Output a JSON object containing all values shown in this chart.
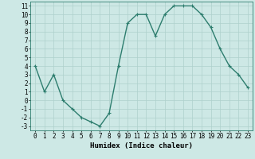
{
  "x": [
    0,
    1,
    2,
    3,
    4,
    5,
    6,
    7,
    8,
    9,
    10,
    11,
    12,
    13,
    14,
    15,
    16,
    17,
    18,
    19,
    20,
    21,
    22,
    23
  ],
  "y": [
    4,
    1,
    3,
    0,
    -1,
    -2,
    -2.5,
    -3,
    -1.5,
    4,
    9,
    10,
    10,
    7.5,
    10,
    11,
    11,
    11,
    10,
    8.5,
    6,
    4,
    3,
    1.5
  ],
  "ylim": [
    -3.5,
    11.5
  ],
  "xlim": [
    -0.5,
    23.5
  ],
  "yticks": [
    -3,
    -2,
    -1,
    0,
    1,
    2,
    3,
    4,
    5,
    6,
    7,
    8,
    9,
    10,
    11
  ],
  "xticks": [
    0,
    1,
    2,
    3,
    4,
    5,
    6,
    7,
    8,
    9,
    10,
    11,
    12,
    13,
    14,
    15,
    16,
    17,
    18,
    19,
    20,
    21,
    22,
    23
  ],
  "xlabel": "Humidex (Indice chaleur)",
  "line_color": "#2d7d6e",
  "bg_color": "#cde8e5",
  "grid_color": "#aed0cc",
  "marker": "+",
  "marker_size": 3,
  "marker_edge_width": 0.8,
  "line_width": 1.0,
  "xlabel_fontsize": 6.5,
  "tick_fontsize": 5.5
}
